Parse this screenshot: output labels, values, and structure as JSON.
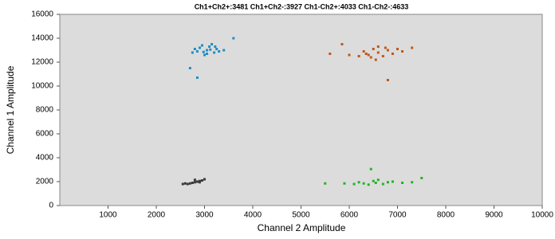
{
  "chart_data": {
    "type": "scatter",
    "title": "Ch1+Ch2+:3481 Ch1+Ch2-:3927 Ch1-Ch2+:4033 Ch1-Ch2-:4633",
    "xlabel": "Channel 2 Amplitude",
    "ylabel": "Channel 1 Amplitude",
    "xlim": [
      0,
      10000
    ],
    "ylim": [
      0,
      16000
    ],
    "xticks": [
      1000,
      2000,
      3000,
      4000,
      5000,
      6000,
      7000,
      8000,
      9000,
      10000
    ],
    "yticks": [
      0,
      2000,
      4000,
      6000,
      8000,
      10000,
      12000,
      14000,
      16000
    ],
    "grid": false,
    "series": [
      {
        "color": "#1f8ec4",
        "x": [
          3050,
          2900,
          3200,
          3100,
          2850,
          3250,
          3000,
          3150,
          2950,
          3300,
          2800,
          3050,
          3120,
          2980,
          3220,
          3400,
          2750,
          3600,
          2700,
          2850
        ],
        "y": [
          13000,
          13200,
          12800,
          13300,
          12900,
          13100,
          12600,
          13500,
          13400,
          12900,
          13100,
          12700,
          13050,
          12850,
          13300,
          13000,
          12800,
          14000,
          11500,
          10700
        ]
      },
      {
        "color": "#c0581a",
        "x": [
          6600,
          6400,
          6800,
          6500,
          6700,
          6300,
          6900,
          7100,
          6200,
          6600,
          6450,
          6750,
          7000,
          6350,
          6550,
          7300,
          6000,
          5850,
          5600,
          6800
        ],
        "y": [
          12800,
          12600,
          13000,
          13100,
          12500,
          12900,
          12700,
          12900,
          12500,
          13300,
          12400,
          13200,
          13100,
          12700,
          12200,
          13200,
          12600,
          13500,
          12700,
          10500
        ]
      },
      {
        "color": "#3a3a3a",
        "x": [
          2800,
          2700,
          2900,
          2650,
          2850,
          2750,
          2950,
          2600,
          2900,
          3000,
          2550,
          2800
        ],
        "y": [
          1950,
          1850,
          2050,
          1800,
          2000,
          1900,
          2100,
          1850,
          1950,
          2200,
          1800,
          2150
        ]
      },
      {
        "color": "#22b522",
        "x": [
          6550,
          6300,
          6800,
          6100,
          6900,
          6500,
          6700,
          6200,
          7100,
          5900,
          6600,
          6400,
          7300,
          5500,
          7500,
          6450
        ],
        "y": [
          1900,
          1850,
          1950,
          1800,
          2000,
          2050,
          1800,
          1950,
          1900,
          1850,
          2150,
          1750,
          1950,
          1850,
          2300,
          3050
        ]
      }
    ]
  }
}
